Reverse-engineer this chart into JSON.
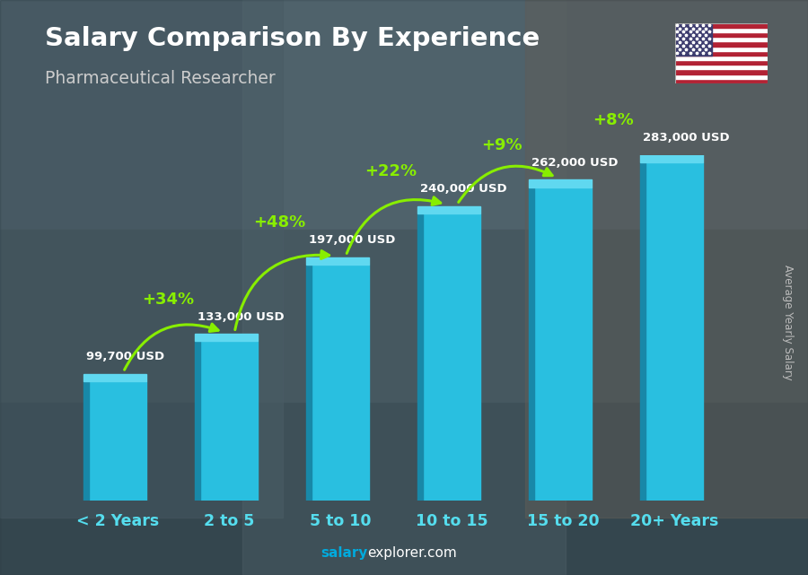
{
  "title": "Salary Comparison By Experience",
  "subtitle": "Pharmaceutical Researcher",
  "categories": [
    "< 2 Years",
    "2 to 5",
    "5 to 10",
    "10 to 15",
    "15 to 20",
    "20+ Years"
  ],
  "values": [
    99700,
    133000,
    197000,
    240000,
    262000,
    283000
  ],
  "value_labels": [
    "99,700 USD",
    "133,000 USD",
    "197,000 USD",
    "240,000 USD",
    "262,000 USD",
    "283,000 USD"
  ],
  "pct_changes": [
    "+34%",
    "+48%",
    "+22%",
    "+9%",
    "+8%"
  ],
  "bar_face_color": "#29bfe0",
  "bar_side_color": "#1888a8",
  "bar_top_color": "#60d8f0",
  "bg_color": "#3a4a55",
  "title_color": "#ffffff",
  "subtitle_color": "#cccccc",
  "label_color": "#ffffff",
  "pct_color": "#88ee00",
  "cat_color": "#55ddee",
  "watermark_salary": "salary",
  "watermark_rest": "explorer.com",
  "watermark_color1": "#00aadd",
  "watermark_color2": "#ffffff",
  "ylabel_text": "Average Yearly Salary",
  "figsize": [
    9.0,
    6.41
  ],
  "dpi": 100
}
